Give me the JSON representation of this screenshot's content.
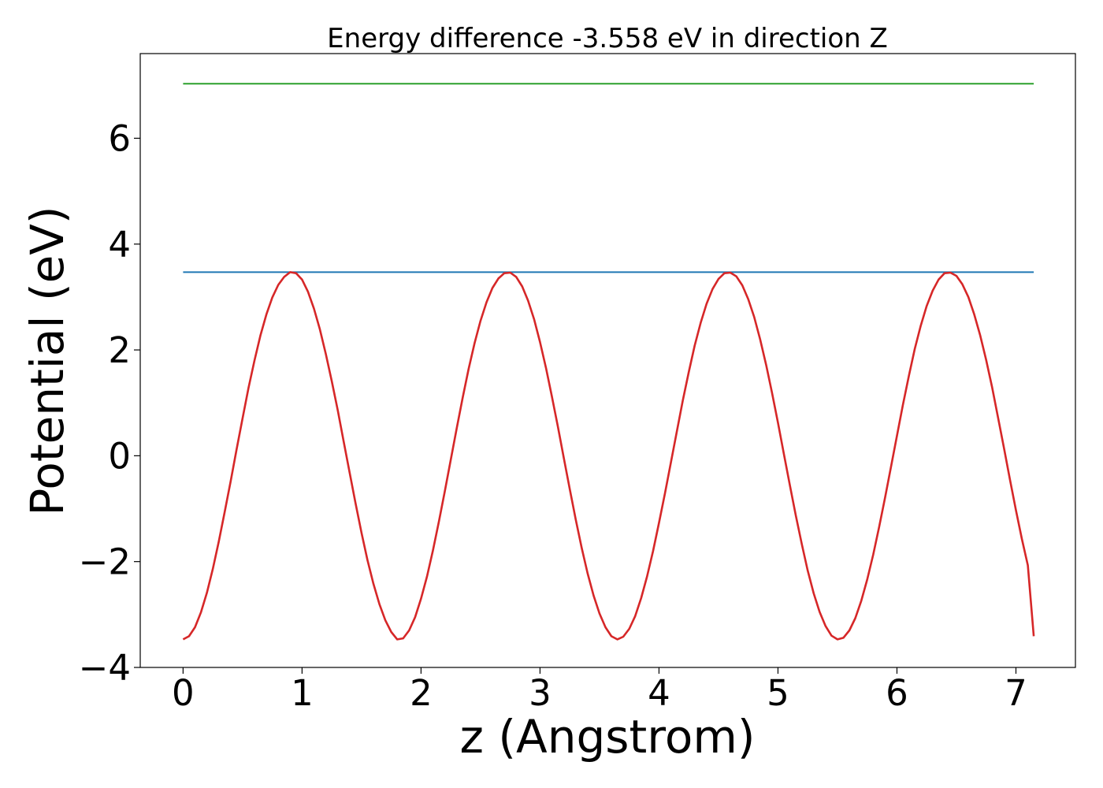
{
  "chart_data": {
    "type": "line",
    "title": "Energy difference -3.558 eV in direction Z",
    "xlabel": "z (Angstrom)",
    "ylabel": "Potential (eV)",
    "xlim": [
      -0.36,
      7.5
    ],
    "ylim": [
      -4.0,
      7.6
    ],
    "x_ticks": [
      0,
      1,
      2,
      3,
      4,
      5,
      6,
      7
    ],
    "x_tick_labels": [
      "0",
      "1",
      "2",
      "3",
      "4",
      "5",
      "6",
      "7"
    ],
    "y_ticks": [
      -4,
      -2,
      0,
      2,
      4,
      6
    ],
    "y_tick_labels": [
      "−4",
      "−2",
      "0",
      "2",
      "4",
      "6"
    ],
    "grid": false,
    "series": [
      {
        "color": "#2ca02c",
        "x": [
          0,
          7.15
        ],
        "y": [
          7.03,
          7.03
        ]
      },
      {
        "color": "#1f77b4",
        "x": [
          0,
          7.15
        ],
        "y": [
          3.47,
          3.47
        ]
      },
      {
        "color": "#d62728",
        "x": [
          0,
          0.05,
          0.1,
          0.15,
          0.2,
          0.25,
          0.3,
          0.35,
          0.4,
          0.45,
          0.5,
          0.55,
          0.6,
          0.65,
          0.7,
          0.75,
          0.8,
          0.85,
          0.9,
          0.95,
          1.0,
          1.05,
          1.1,
          1.15,
          1.2,
          1.25,
          1.3,
          1.35,
          1.4,
          1.45,
          1.5,
          1.55,
          1.6,
          1.65,
          1.7,
          1.75,
          1.8,
          1.85,
          1.9,
          1.95,
          2.0,
          2.05,
          2.1,
          2.15,
          2.2,
          2.25,
          2.3,
          2.35,
          2.4,
          2.45,
          2.5,
          2.55,
          2.6,
          2.65,
          2.7,
          2.75,
          2.8,
          2.85,
          2.9,
          2.95,
          3.0,
          3.05,
          3.1,
          3.15,
          3.2,
          3.25,
          3.3,
          3.35,
          3.4,
          3.45,
          3.5,
          3.55,
          3.6,
          3.65,
          3.7,
          3.75,
          3.8,
          3.85,
          3.9,
          3.95,
          4.0,
          4.05,
          4.1,
          4.15,
          4.2,
          4.25,
          4.3,
          4.35,
          4.4,
          4.45,
          4.5,
          4.55,
          4.6,
          4.65,
          4.7,
          4.75,
          4.8,
          4.85,
          4.9,
          4.95,
          5.0,
          5.05,
          5.1,
          5.15,
          5.2,
          5.25,
          5.3,
          5.35,
          5.4,
          5.45,
          5.5,
          5.55,
          5.6,
          5.65,
          5.7,
          5.75,
          5.8,
          5.85,
          5.9,
          5.95,
          6.0,
          6.05,
          6.1,
          6.15,
          6.2,
          6.25,
          6.3,
          6.35,
          6.4,
          6.45,
          6.5,
          6.55,
          6.6,
          6.65,
          6.7,
          6.75,
          6.8,
          6.85,
          6.9,
          6.95,
          7.0,
          7.05,
          7.1,
          7.15
        ],
        "y": [
          -3.47,
          -3.41,
          -3.24,
          -2.96,
          -2.59,
          -2.14,
          -1.62,
          -1.06,
          -0.48,
          0.12,
          0.71,
          1.28,
          1.8,
          2.27,
          2.67,
          2.99,
          3.23,
          3.38,
          3.47,
          3.45,
          3.33,
          3.1,
          2.78,
          2.39,
          1.92,
          1.41,
          0.86,
          0.27,
          -0.32,
          -0.9,
          -1.46,
          -1.97,
          -2.42,
          -2.8,
          -3.11,
          -3.33,
          -3.47,
          -3.45,
          -3.3,
          -3.05,
          -2.7,
          -2.28,
          -1.79,
          -1.24,
          -0.67,
          -0.07,
          0.52,
          1.1,
          1.64,
          2.13,
          2.55,
          2.9,
          3.17,
          3.35,
          3.45,
          3.46,
          3.38,
          3.2,
          2.93,
          2.58,
          2.15,
          1.66,
          1.12,
          0.55,
          -0.04,
          -0.63,
          -1.2,
          -1.74,
          -2.22,
          -2.64,
          -2.98,
          -3.24,
          -3.41,
          -3.47,
          -3.42,
          -3.27,
          -3.03,
          -2.69,
          -2.28,
          -1.8,
          -1.27,
          -0.71,
          -0.13,
          0.46,
          1.04,
          1.58,
          2.08,
          2.51,
          2.87,
          3.15,
          3.34,
          3.45,
          3.46,
          3.39,
          3.22,
          2.96,
          2.62,
          2.2,
          1.72,
          1.19,
          0.62,
          0.03,
          -0.56,
          -1.13,
          -1.67,
          -2.17,
          -2.6,
          -2.95,
          -3.22,
          -3.4,
          -3.47,
          -3.44,
          -3.3,
          -3.07,
          -2.74,
          -2.34,
          -1.87,
          -1.35,
          -0.79,
          -0.21,
          0.38,
          0.96,
          1.51,
          2.02,
          2.46,
          2.83,
          3.12,
          3.33,
          3.45,
          3.46,
          3.4,
          3.24,
          3.0,
          2.67,
          2.27,
          1.81,
          1.29,
          0.72,
          0.14,
          -0.45,
          -1.03,
          -1.57,
          -2.07,
          -3.41
        ]
      }
    ]
  }
}
